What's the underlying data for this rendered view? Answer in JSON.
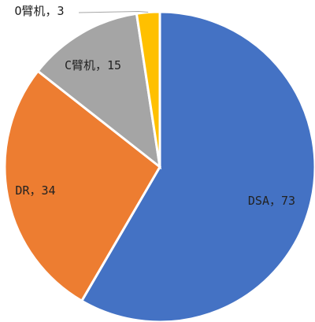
{
  "chart_data": {
    "type": "pie",
    "categories": [
      "DSA",
      "DR",
      "C臂机",
      "O臂机"
    ],
    "values": [
      73,
      34,
      15,
      3
    ],
    "colors": [
      "#4472c4",
      "#ed7d31",
      "#a5a5a5",
      "#ffc000"
    ],
    "label_separator": "，"
  }
}
